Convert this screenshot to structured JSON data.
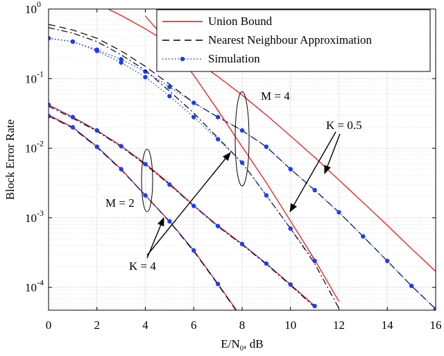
{
  "chart_data": {
    "type": "line",
    "ylabel": "Block Error Rate",
    "xlabel": {
      "text": "E/N",
      "subscript": "0",
      "suffix": ", dB"
    },
    "log_y": true,
    "grid": true,
    "legend": "upper right",
    "x": [
      0,
      1,
      2,
      3,
      4,
      5,
      6,
      7,
      8,
      9,
      10,
      11,
      12,
      13,
      14,
      15,
      16
    ],
    "xlim": [
      0,
      16
    ],
    "xticks": [
      0,
      2,
      4,
      6,
      8,
      10,
      12,
      14,
      16
    ],
    "ylim": [
      4.7e-05,
      1
    ],
    "yticks": [
      {
        "value": 1,
        "base": "10",
        "exponent": "0"
      },
      {
        "value": 0.1,
        "base": "10",
        "exponent": "-1"
      },
      {
        "value": 0.01,
        "base": "10",
        "exponent": "-2"
      },
      {
        "value": 0.001,
        "base": "10",
        "exponent": "-3"
      },
      {
        "value": 0.0001,
        "base": "10",
        "exponent": "-4"
      }
    ],
    "series": [
      {
        "name": "Union Bound",
        "color": "#ff0000",
        "dash": "solid",
        "marker": false,
        "values": [
          null,
          null,
          1.2,
          0.81,
          0.52,
          0.32,
          0.19,
          0.107,
          0.058,
          0.03,
          0.015,
          0.0074,
          0.0035,
          0.00166,
          0.00078,
          0.00036,
          0.00017
        ]
      },
      {
        "name": "Nearest Neighbour Approximation",
        "color": "#000000",
        "dash": "dashed",
        "marker": false,
        "values": [
          0.6,
          0.5,
          0.38,
          0.25,
          0.15,
          0.083,
          0.045,
          0.028,
          0.018,
          0.0105,
          0.005,
          0.0025,
          0.0012,
          0.00054,
          0.00024,
          0.000105,
          4.9e-05
        ]
      },
      {
        "name": "Simulation",
        "color": "#1a3cff",
        "dash": "dotted",
        "marker": true,
        "values": [
          0.38,
          0.34,
          0.26,
          0.19,
          0.126,
          0.076,
          0.045,
          0.028,
          0.018,
          0.0105,
          0.005,
          0.0025,
          0.0012,
          0.00054,
          0.00024,
          0.000105,
          4.9e-05
        ]
      },
      {
        "name": "Union Bound",
        "color": "#ff0000",
        "dash": "solid",
        "marker": false,
        "values": [
          null,
          null,
          null,
          null,
          0.79,
          0.32,
          0.112,
          0.035,
          0.0105,
          0.0032,
          0.0009,
          0.00025,
          6.3e-05,
          null,
          null,
          null,
          null
        ]
      },
      {
        "name": "Nearest Neighbour Approximation",
        "color": "#000000",
        "dash": "dashdot",
        "marker": false,
        "values": [
          0.54,
          0.45,
          0.34,
          0.22,
          0.132,
          0.066,
          0.032,
          0.0141,
          0.0062,
          0.0021,
          0.0007,
          0.00022,
          5e-05,
          null,
          null,
          null,
          null
        ]
      },
      {
        "name": "Simulation",
        "color": "#1a3cff",
        "dash": "dotted",
        "marker": true,
        "values": [
          0.38,
          0.34,
          0.25,
          0.17,
          0.105,
          0.056,
          0.028,
          0.0135,
          0.0062,
          0.0021,
          0.0007,
          0.00024,
          null,
          null,
          null,
          null,
          null
        ]
      },
      {
        "name": "Union Bound",
        "color": "#ff0000",
        "dash": "solid",
        "marker": false,
        "values": [
          0.042,
          0.028,
          0.018,
          0.0108,
          0.006,
          0.0031,
          0.0015,
          0.00077,
          0.00042,
          0.00022,
          0.00011,
          5.4e-05,
          null,
          null,
          null,
          null,
          null
        ]
      },
      {
        "name": "Nearest Neighbour Approximation",
        "color": "#000000",
        "dash": "dashdot",
        "marker": false,
        "values": [
          0.04,
          0.027,
          0.0175,
          0.0105,
          0.0058,
          0.003,
          0.00148,
          0.00075,
          0.00041,
          0.000215,
          0.000107,
          5.2e-05,
          null,
          null,
          null,
          null,
          null
        ]
      },
      {
        "name": "Simulation",
        "color": "#1a3cff",
        "dash": "dotted",
        "marker": true,
        "values": [
          0.042,
          0.028,
          0.018,
          0.0107,
          0.0059,
          0.003,
          0.00148,
          0.00076,
          0.00042,
          0.00022,
          0.00011,
          5.4e-05,
          null,
          null,
          null,
          null,
          null
        ]
      },
      {
        "name": "Union Bound",
        "color": "#ff0000",
        "dash": "solid",
        "marker": false,
        "values": [
          0.03,
          0.02,
          0.0106,
          0.005,
          0.0021,
          0.00089,
          0.00034,
          0.000113,
          3.6e-05,
          null,
          null,
          null,
          null,
          null,
          null,
          null,
          null
        ]
      },
      {
        "name": "Nearest Neighbour Approximation",
        "color": "#000000",
        "dash": "dashed",
        "marker": false,
        "values": [
          0.029,
          0.0195,
          0.0103,
          0.0049,
          0.0021,
          0.00088,
          0.00033,
          0.00011,
          3.5e-05,
          null,
          null,
          null,
          null,
          null,
          null,
          null,
          null
        ]
      },
      {
        "name": "Simulation",
        "color": "#1a3cff",
        "dash": "dotted",
        "marker": true,
        "values": [
          0.029,
          0.02,
          0.0105,
          0.005,
          0.0021,
          0.00089,
          0.00034,
          0.000112,
          null,
          null,
          null,
          null,
          null,
          null,
          null,
          null,
          null
        ]
      }
    ],
    "annotations": [
      "M = 4",
      "K = 0.5",
      "M = 2",
      "K = 4"
    ]
  }
}
